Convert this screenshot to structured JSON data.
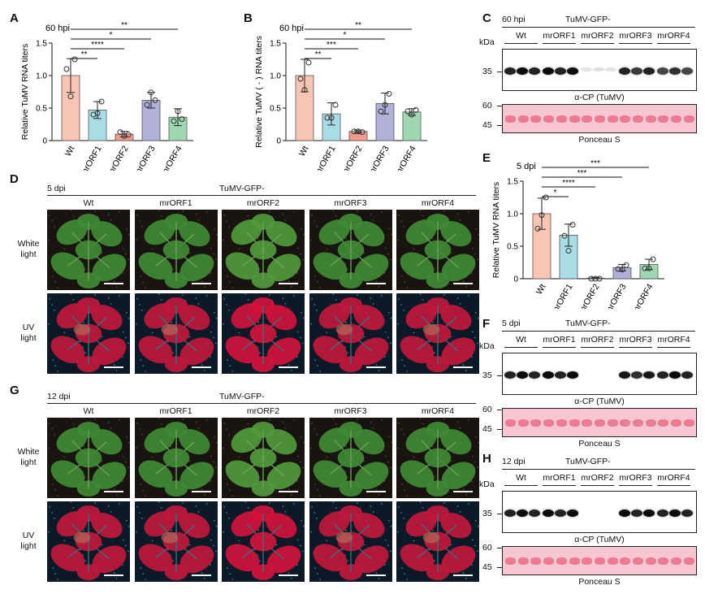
{
  "figure": {
    "panel_letters": {
      "A": "A",
      "B": "B",
      "C": "C",
      "D": "D",
      "E": "E",
      "F": "F",
      "G": "G",
      "H": "H"
    },
    "construct_label": "TuMV-GFP-",
    "lanes": [
      "Wt",
      "mrORF1",
      "mrORF2",
      "mrORF3",
      "mrORF4"
    ],
    "colors": {
      "Wt": "#f9c6b5",
      "mrORF1": "#a8dde6",
      "mrORF2": "#f29a8c",
      "mrORF3": "#b0b0d8",
      "mrORF4": "#9fd7b0"
    }
  },
  "panelA": {
    "timepoint": "60 hpi",
    "ylabel": "Relative TuMV RNA titers",
    "sig": [
      "**",
      "*",
      "****",
      "**"
    ]
  },
  "panelB": {
    "timepoint": "60 hpi",
    "ylabel": "Relative TuMV ( - ) RNA titers",
    "sig": [
      "**",
      "*",
      "***",
      "**"
    ]
  },
  "panelE": {
    "timepoint": "5 dpi",
    "ylabel": "Relative TuMV RNA titers",
    "sig": [
      "***",
      "***",
      "****",
      "*"
    ]
  },
  "chart_data": [
    {
      "id": "A",
      "type": "bar",
      "categories": [
        "Wt",
        "mrORF1",
        "mrORF2",
        "mrORF3",
        "mrORF4"
      ],
      "values": [
        1.0,
        0.47,
        0.1,
        0.62,
        0.36
      ],
      "errors": [
        0.26,
        0.13,
        0.04,
        0.12,
        0.13
      ],
      "points": [
        [
          1.1,
          0.68,
          1.25
        ],
        [
          0.4,
          0.42,
          0.6
        ],
        [
          0.13,
          0.07,
          0.09
        ],
        [
          0.55,
          0.74,
          0.62
        ],
        [
          0.3,
          0.45,
          0.33
        ]
      ],
      "ylim": [
        0,
        1.5
      ],
      "yticks": [
        "0",
        "0.5",
        "1.0",
        "1.5"
      ],
      "ylabel": "Relative TuMV RNA titers",
      "title": "60 hpi"
    },
    {
      "id": "B",
      "type": "bar",
      "categories": [
        "Wt",
        "mrORF1",
        "mrORF2",
        "mrORF3",
        "mrORF4"
      ],
      "values": [
        1.0,
        0.41,
        0.14,
        0.57,
        0.44
      ],
      "errors": [
        0.25,
        0.17,
        0.02,
        0.16,
        0.05
      ],
      "points": [
        [
          0.95,
          0.78,
          1.2
        ],
        [
          0.35,
          0.35,
          0.55
        ],
        [
          0.14,
          0.14,
          0.13
        ],
        [
          0.45,
          0.55,
          0.72
        ],
        [
          0.45,
          0.4,
          0.47
        ]
      ],
      "ylim": [
        0,
        1.5
      ],
      "yticks": [
        "0",
        "0.5",
        "1.0",
        "1.5"
      ],
      "ylabel": "Relative TuMV ( - ) RNA titers",
      "title": "60 hpi"
    },
    {
      "id": "E",
      "type": "bar",
      "categories": [
        "Wt",
        "mrORF1",
        "mrORF2",
        "mrORF3",
        "mrORF4"
      ],
      "values": [
        1.0,
        0.67,
        0.01,
        0.17,
        0.22
      ],
      "errors": [
        0.24,
        0.17,
        0.01,
        0.05,
        0.08
      ],
      "points": [
        [
          0.77,
          0.98,
          1.25
        ],
        [
          0.66,
          0.43,
          0.83
        ],
        [
          0.0,
          0.0,
          0.0
        ],
        [
          0.15,
          0.14,
          0.21
        ],
        [
          0.16,
          0.16,
          0.3
        ]
      ],
      "ylim": [
        0,
        1.5
      ],
      "yticks": [
        "0",
        "0.5",
        "1.0",
        "1.5"
      ],
      "ylabel": "Relative TuMV RNA titers",
      "title": "5 dpi"
    }
  ],
  "panelC": {
    "timepoint": "60 hpi",
    "kda": "kDa",
    "marker_blot": "35",
    "marker_pon": [
      "60",
      "45"
    ],
    "antibody": "α-CP (TuMV)",
    "stain": "Ponceau S",
    "band_intensity": [
      1.0,
      1.0,
      0.12,
      0.9,
      0.85
    ]
  },
  "panelF": {
    "timepoint": "5 dpi",
    "kda": "kDa",
    "marker_blot": "35",
    "marker_pon": [
      "60",
      "45"
    ],
    "antibody": "α-CP (TuMV)",
    "stain": "Ponceau S",
    "band_intensity": [
      1.0,
      1.0,
      0.0,
      0.95,
      1.0
    ]
  },
  "panelH": {
    "timepoint": "12 dpi",
    "kda": "kDa",
    "marker_blot": "35",
    "marker_pon": [
      "60",
      "45"
    ],
    "antibody": "α-CP (TuMV)",
    "stain": "Ponceau S",
    "band_intensity": [
      1.0,
      1.0,
      0.0,
      1.0,
      1.0
    ]
  },
  "panelD": {
    "timepoint": "5 dpi",
    "row_labels": [
      "White\nlight",
      "UV\nlight"
    ]
  },
  "panelG": {
    "timepoint": "12 dpi",
    "row_labels": [
      "White\nlight",
      "UV\nlight"
    ]
  }
}
